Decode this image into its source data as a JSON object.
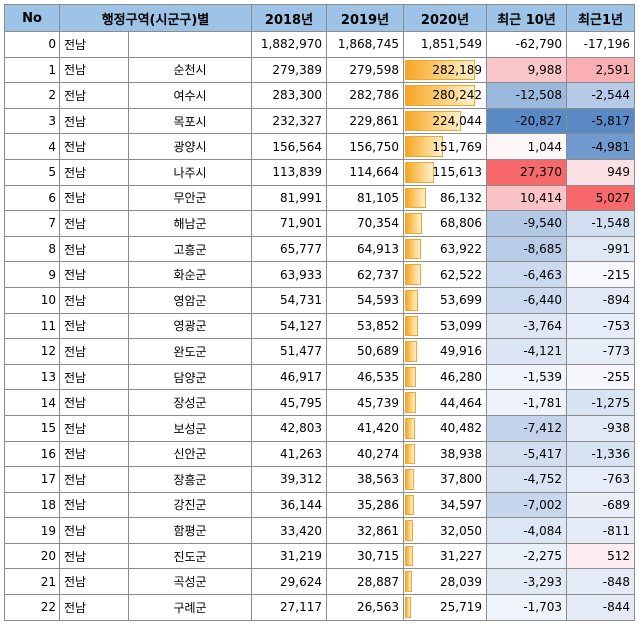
{
  "colors": {
    "header_bg": "#9dc3e6",
    "bar_color": "#f5a623",
    "positive_scale": "#f8696b",
    "negative_scale": "#5a8ac6"
  },
  "headers": [
    "No",
    "행정구역(시군구)별",
    "2018년",
    "2019년",
    "2020년",
    "최근 10년",
    "최근1년"
  ],
  "rows": [
    {
      "no": "0",
      "prov": "전남",
      "city": "",
      "y2018": "1,882,970",
      "y2019": "1,868,745",
      "y2020": "1,851,549",
      "d10": "-62,790",
      "d1": "-17,196"
    },
    {
      "no": "1",
      "prov": "전남",
      "city": "순천시",
      "y2018": "279,389",
      "y2019": "279,598",
      "y2020": "282,189",
      "d10": "9,988",
      "d1": "2,591"
    },
    {
      "no": "2",
      "prov": "전남",
      "city": "여수시",
      "y2018": "283,300",
      "y2019": "282,786",
      "y2020": "280,242",
      "d10": "-12,508",
      "d1": "-2,544"
    },
    {
      "no": "3",
      "prov": "전남",
      "city": "목포시",
      "y2018": "232,327",
      "y2019": "229,861",
      "y2020": "224,044",
      "d10": "-20,827",
      "d1": "-5,817"
    },
    {
      "no": "4",
      "prov": "전남",
      "city": "광양시",
      "y2018": "156,564",
      "y2019": "156,750",
      "y2020": "151,769",
      "d10": "1,044",
      "d1": "-4,981"
    },
    {
      "no": "5",
      "prov": "전남",
      "city": "나주시",
      "y2018": "113,839",
      "y2019": "114,664",
      "y2020": "115,613",
      "d10": "27,370",
      "d1": "949"
    },
    {
      "no": "6",
      "prov": "전남",
      "city": "무안군",
      "y2018": "81,991",
      "y2019": "81,105",
      "y2020": "86,132",
      "d10": "10,414",
      "d1": "5,027"
    },
    {
      "no": "7",
      "prov": "전남",
      "city": "해남군",
      "y2018": "71,901",
      "y2019": "70,354",
      "y2020": "68,806",
      "d10": "-9,540",
      "d1": "-1,548"
    },
    {
      "no": "8",
      "prov": "전남",
      "city": "고흥군",
      "y2018": "65,777",
      "y2019": "64,913",
      "y2020": "63,922",
      "d10": "-8,685",
      "d1": "-991"
    },
    {
      "no": "9",
      "prov": "전남",
      "city": "화순군",
      "y2018": "63,933",
      "y2019": "62,737",
      "y2020": "62,522",
      "d10": "-6,463",
      "d1": "-215"
    },
    {
      "no": "10",
      "prov": "전남",
      "city": "영암군",
      "y2018": "54,731",
      "y2019": "54,593",
      "y2020": "53,699",
      "d10": "-6,440",
      "d1": "-894"
    },
    {
      "no": "11",
      "prov": "전남",
      "city": "영광군",
      "y2018": "54,127",
      "y2019": "53,852",
      "y2020": "53,099",
      "d10": "-3,764",
      "d1": "-753"
    },
    {
      "no": "12",
      "prov": "전남",
      "city": "완도군",
      "y2018": "51,477",
      "y2019": "50,689",
      "y2020": "49,916",
      "d10": "-4,121",
      "d1": "-773"
    },
    {
      "no": "13",
      "prov": "전남",
      "city": "담양군",
      "y2018": "46,917",
      "y2019": "46,535",
      "y2020": "46,280",
      "d10": "-1,539",
      "d1": "-255"
    },
    {
      "no": "14",
      "prov": "전남",
      "city": "장성군",
      "y2018": "45,795",
      "y2019": "45,739",
      "y2020": "44,464",
      "d10": "-1,781",
      "d1": "-1,275"
    },
    {
      "no": "15",
      "prov": "전남",
      "city": "보성군",
      "y2018": "42,803",
      "y2019": "41,420",
      "y2020": "40,482",
      "d10": "-7,412",
      "d1": "-938"
    },
    {
      "no": "16",
      "prov": "전남",
      "city": "신안군",
      "y2018": "41,263",
      "y2019": "40,274",
      "y2020": "38,938",
      "d10": "-5,417",
      "d1": "-1,336"
    },
    {
      "no": "17",
      "prov": "전남",
      "city": "장흥군",
      "y2018": "39,312",
      "y2019": "38,563",
      "y2020": "37,800",
      "d10": "-4,752",
      "d1": "-763"
    },
    {
      "no": "18",
      "prov": "전남",
      "city": "강진군",
      "y2018": "36,144",
      "y2019": "35,286",
      "y2020": "34,597",
      "d10": "-7,002",
      "d1": "-689"
    },
    {
      "no": "19",
      "prov": "전남",
      "city": "함평군",
      "y2018": "33,420",
      "y2019": "32,861",
      "y2020": "32,050",
      "d10": "-4,084",
      "d1": "-811"
    },
    {
      "no": "20",
      "prov": "전남",
      "city": "진도군",
      "y2018": "31,219",
      "y2019": "30,715",
      "y2020": "31,227",
      "d10": "-2,275",
      "d1": "512"
    },
    {
      "no": "21",
      "prov": "전남",
      "city": "곡성군",
      "y2018": "29,624",
      "y2019": "28,887",
      "y2020": "28,039",
      "d10": "-3,293",
      "d1": "-848"
    },
    {
      "no": "22",
      "prov": "전남",
      "city": "구례군",
      "y2018": "27,117",
      "y2019": "26,563",
      "y2020": "25,719",
      "d10": "-1,703",
      "d1": "-844"
    }
  ]
}
